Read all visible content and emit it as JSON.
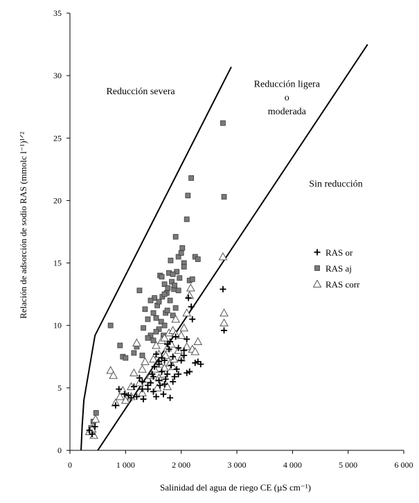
{
  "chart_data": {
    "type": "scatter",
    "title": "",
    "xlabel": "Salinidad del agua de riego CE (µS cm⁻¹)",
    "ylabel": "Relación de adsorción de sodio RAS (mmolc l⁻¹)¹ᐟ²",
    "xlim": [
      0,
      6000
    ],
    "ylim": [
      0,
      35
    ],
    "xticks": [
      0,
      1000,
      2000,
      3000,
      4000,
      5000,
      6000
    ],
    "xtick_labels": [
      "0",
      "1 000",
      "2 000",
      "3 000",
      "4 000",
      "5 000",
      "6 000"
    ],
    "yticks": [
      0,
      5,
      10,
      15,
      20,
      25,
      30,
      35
    ],
    "ytick_labels": [
      "0",
      "5",
      "10",
      "15",
      "20",
      "25",
      "30",
      "35"
    ],
    "grid": false,
    "legend_position": "right",
    "region_labels": [
      {
        "text": "Reducción severa",
        "x": 1270,
        "y": 28.5
      },
      {
        "text": "Reducción ligera",
        "x": 3900,
        "y": 29.1
      },
      {
        "text": "o",
        "x": 3900,
        "y": 28.0
      },
      {
        "text": "moderada",
        "x": 3900,
        "y": 26.9
      },
      {
        "text": "Sin reducción",
        "x": 4780,
        "y": 21.1
      }
    ],
    "boundary_lines": [
      {
        "name": "severe-boundary",
        "x": [
          200,
          220,
          250,
          450,
          2900
        ],
        "y": [
          0,
          2,
          4,
          9.2,
          30.7
        ]
      },
      {
        "name": "slight-boundary",
        "x": [
          500,
          5350
        ],
        "y": [
          0,
          32.5
        ]
      }
    ],
    "series": [
      {
        "name": "RAS or",
        "marker": "plus",
        "points": [
          [
            350,
            1.6
          ],
          [
            400,
            1.3
          ],
          [
            450,
            1.9
          ],
          [
            880,
            4.9
          ],
          [
            820,
            3.6
          ],
          [
            980,
            4.5
          ],
          [
            1050,
            4.4
          ],
          [
            1150,
            5.1
          ],
          [
            1200,
            4.3
          ],
          [
            1250,
            5.8
          ],
          [
            1300,
            4.9
          ],
          [
            1320,
            4.1
          ],
          [
            1400,
            5.2
          ],
          [
            1450,
            5.4
          ],
          [
            1480,
            6.1
          ],
          [
            1500,
            4.7
          ],
          [
            1520,
            6.7
          ],
          [
            1550,
            4.3
          ],
          [
            1600,
            7.1
          ],
          [
            1620,
            5.2
          ],
          [
            1650,
            6.3
          ],
          [
            1680,
            4.5
          ],
          [
            1700,
            7.2
          ],
          [
            1720,
            5.7
          ],
          [
            1750,
            6.1
          ],
          [
            1780,
            8.1
          ],
          [
            1800,
            4.2
          ],
          [
            1820,
            6.8
          ],
          [
            1850,
            7.5
          ],
          [
            1880,
            5.9
          ],
          [
            1900,
            9.1
          ],
          [
            1920,
            6.5
          ],
          [
            1950,
            8.2
          ],
          [
            2000,
            7.2
          ],
          [
            2050,
            7.6
          ],
          [
            2100,
            8.9
          ],
          [
            2150,
            6.3
          ],
          [
            2200,
            10.5
          ],
          [
            2250,
            7.0
          ],
          [
            2300,
            7.1
          ],
          [
            2350,
            6.9
          ],
          [
            1600,
            5.6
          ],
          [
            1700,
            5.3
          ],
          [
            1750,
            8.5
          ],
          [
            1500,
            5.9
          ],
          [
            2100,
            6.2
          ],
          [
            2180,
            11.5
          ],
          [
            2130,
            12.2
          ],
          [
            2750,
            12.9
          ],
          [
            2770,
            9.6
          ],
          [
            1550,
            7.7
          ],
          [
            1650,
            7.4
          ],
          [
            1850,
            5.5
          ],
          [
            1950,
            6.1
          ],
          [
            1400,
            4.9
          ],
          [
            1300,
            5.5
          ],
          [
            1100,
            4.2
          ],
          [
            1800,
            8.7
          ],
          [
            2050,
            8.0
          ],
          [
            1600,
            6.9
          ]
        ]
      },
      {
        "name": "RAS aj",
        "marker": "square",
        "points": [
          [
            380,
            1.8
          ],
          [
            420,
            2.3
          ],
          [
            470,
            3.0
          ],
          [
            730,
            10.0
          ],
          [
            900,
            8.4
          ],
          [
            950,
            7.5
          ],
          [
            1000,
            7.4
          ],
          [
            1150,
            7.8
          ],
          [
            1200,
            8.3
          ],
          [
            1250,
            12.8
          ],
          [
            1300,
            7.6
          ],
          [
            1320,
            9.8
          ],
          [
            1350,
            11.3
          ],
          [
            1400,
            10.5
          ],
          [
            1450,
            9.2
          ],
          [
            1500,
            11.0
          ],
          [
            1500,
            8.8
          ],
          [
            1520,
            12.2
          ],
          [
            1550,
            10.6
          ],
          [
            1570,
            11.6
          ],
          [
            1600,
            11.9
          ],
          [
            1620,
            14.0
          ],
          [
            1640,
            10.3
          ],
          [
            1660,
            12.3
          ],
          [
            1680,
            9.2
          ],
          [
            1700,
            13.3
          ],
          [
            1720,
            11.0
          ],
          [
            1740,
            12.6
          ],
          [
            1760,
            13.0
          ],
          [
            1780,
            14.2
          ],
          [
            1800,
            12.0
          ],
          [
            1810,
            15.2
          ],
          [
            1830,
            13.5
          ],
          [
            1850,
            10.8
          ],
          [
            1870,
            12.9
          ],
          [
            1880,
            13.2
          ],
          [
            1900,
            17.1
          ],
          [
            1920,
            14.3
          ],
          [
            1950,
            15.5
          ],
          [
            1970,
            13.8
          ],
          [
            2000,
            15.8
          ],
          [
            2020,
            16.2
          ],
          [
            2050,
            15.0
          ],
          [
            2100,
            18.5
          ],
          [
            2120,
            20.4
          ],
          [
            2150,
            13.6
          ],
          [
            2180,
            21.8
          ],
          [
            2200,
            13.7
          ],
          [
            2250,
            15.5
          ],
          [
            2300,
            15.3
          ],
          [
            2750,
            26.2
          ],
          [
            2770,
            20.3
          ],
          [
            1600,
            9.7
          ],
          [
            1700,
            12.5
          ],
          [
            1750,
            11.2
          ],
          [
            1650,
            13.9
          ],
          [
            1550,
            9.5
          ],
          [
            1950,
            12.8
          ],
          [
            2050,
            14.7
          ],
          [
            1850,
            14.1
          ],
          [
            1450,
            12.0
          ],
          [
            1400,
            9.0
          ],
          [
            1700,
            10.0
          ],
          [
            1900,
            11.4
          ]
        ]
      },
      {
        "name": "RAS corr",
        "marker": "triangle",
        "points": [
          [
            350,
            1.5
          ],
          [
            400,
            1.7
          ],
          [
            430,
            1.2
          ],
          [
            460,
            2.5
          ],
          [
            730,
            6.4
          ],
          [
            820,
            3.8
          ],
          [
            900,
            4.3
          ],
          [
            950,
            4.8
          ],
          [
            1000,
            4.0
          ],
          [
            1100,
            5.1
          ],
          [
            1150,
            6.2
          ],
          [
            1200,
            8.6
          ],
          [
            1250,
            5.4
          ],
          [
            1300,
            4.6
          ],
          [
            1350,
            7.1
          ],
          [
            1400,
            5.7
          ],
          [
            1450,
            6.0
          ],
          [
            1500,
            7.3
          ],
          [
            1520,
            6.5
          ],
          [
            1550,
            8.4
          ],
          [
            1570,
            5.0
          ],
          [
            1600,
            7.7
          ],
          [
            1620,
            6.9
          ],
          [
            1650,
            8.8
          ],
          [
            1680,
            6.1
          ],
          [
            1700,
            9.0
          ],
          [
            1720,
            7.6
          ],
          [
            1750,
            8.2
          ],
          [
            1780,
            9.4
          ],
          [
            1800,
            7.0
          ],
          [
            1820,
            8.5
          ],
          [
            1850,
            9.6
          ],
          [
            1870,
            7.3
          ],
          [
            1900,
            10.5
          ],
          [
            1950,
            8.0
          ],
          [
            2000,
            9.2
          ],
          [
            2050,
            9.8
          ],
          [
            2100,
            11.0
          ],
          [
            2150,
            12.4
          ],
          [
            2170,
            13.0
          ],
          [
            2200,
            8.1
          ],
          [
            2250,
            7.9
          ],
          [
            2300,
            8.7
          ],
          [
            2750,
            15.5
          ],
          [
            2770,
            11.0
          ],
          [
            2770,
            10.2
          ],
          [
            780,
            6.0
          ],
          [
            1100,
            4.3
          ],
          [
            1300,
            6.5
          ],
          [
            1600,
            5.8
          ],
          [
            1700,
            6.6
          ],
          [
            1850,
            6.7
          ],
          [
            2000,
            7.4
          ],
          [
            2100,
            8.3
          ],
          [
            1900,
            9.3
          ],
          [
            1750,
            5.1
          ]
        ]
      }
    ]
  },
  "legend": {
    "items": [
      {
        "label": "RAS or",
        "marker": "plus"
      },
      {
        "label": "RAS aj",
        "marker": "square"
      },
      {
        "label": "RAS corr",
        "marker": "triangle"
      }
    ]
  }
}
